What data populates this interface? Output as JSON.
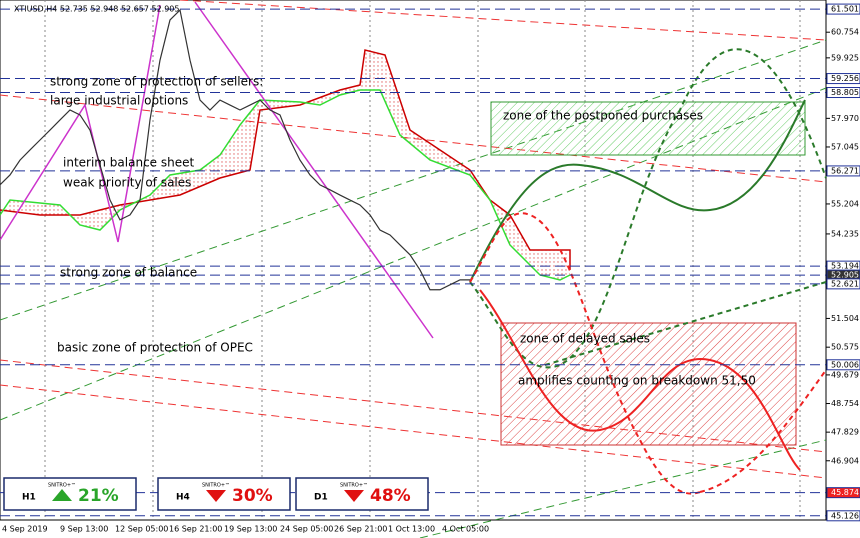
{
  "chart_data": {
    "type": "line",
    "title": "XTIUSD,H4  52.735 52.948 52.657 52.905",
    "ylim": [
      44.99,
      61.73
    ],
    "yticks": [
      61.501,
      60.754,
      59.925,
      59.256,
      58.805,
      {
        "value": 57.97,
        "label": "57.970"
      },
      57.045,
      56.271,
      55.204,
      54.235,
      53.194,
      52.905,
      52.621,
      51.504,
      50.575,
      50.006,
      49.679,
      48.754,
      47.829,
      46.904,
      45.874,
      45.126
    ],
    "xticks": [
      "4 Sep 2019",
      "9 Sep 13:00",
      "12 Sep 05:00",
      "16 Sep 21:00",
      "19 Sep 13:00",
      "24 Sep 05:00",
      "26 Sep 21:00",
      "1 Oct 13:00",
      "4 Oct 05:00"
    ],
    "series": [
      {
        "name": "XTIUSD",
        "color": "#333333",
        "values": [
          55.82,
          56.14,
          56.62,
          56.95,
          57.27,
          57.59,
          57.92,
          58.24,
          58.08,
          57.59,
          56.46,
          55.33,
          54.69,
          54.85,
          55.33,
          57.92,
          59.85,
          61.15,
          61.47,
          59.85,
          58.56,
          58.24,
          58.56,
          58.4,
          58.24,
          58.4,
          58.56,
          58.24,
          58.08,
          57.27,
          56.62,
          56.14,
          55.82,
          55.66,
          55.49,
          55.33,
          55.17,
          54.85,
          54.36,
          54.2,
          53.88,
          53.56,
          53.07,
          52.43,
          52.43,
          52.59,
          52.75,
          52.75
        ]
      }
    ],
    "annotations": [
      "strong zone of protection of sellers:",
      "large industrial options",
      "interim balance sheet",
      "weak priority of sales",
      "strong zone of balance",
      "basic zone of protection of OPEC",
      "zone of the postponed purchases",
      "zone of delayed sales",
      "amplifies counting on breakdown 51,50"
    ],
    "indicators": [
      {
        "timeframe": "H1",
        "brand": "SNITRO+™",
        "direction": "up",
        "percent": "21%"
      },
      {
        "timeframe": "H4",
        "brand": "SNITRO+™",
        "direction": "down",
        "percent": "30%"
      },
      {
        "timeframe": "D1",
        "brand": "SNITRO+™",
        "direction": "down",
        "percent": "48%"
      }
    ]
  }
}
